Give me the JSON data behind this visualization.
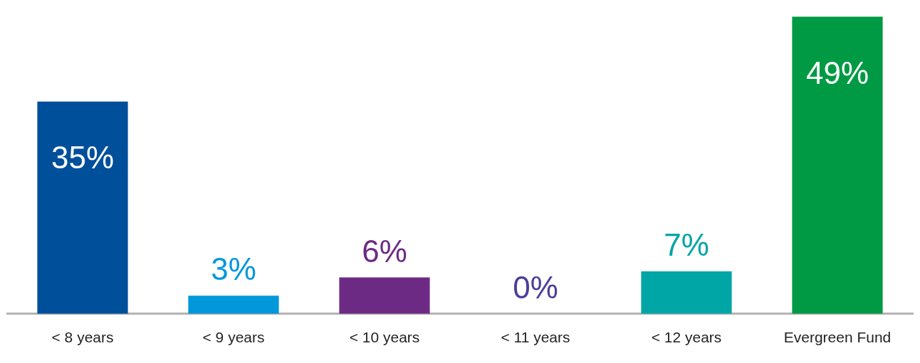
{
  "chart_data": {
    "type": "bar",
    "categories": [
      "< 8 years",
      "< 9 years",
      "< 10 years",
      "< 11 years",
      "< 12 years",
      "Evergreen Fund"
    ],
    "values": [
      35,
      3,
      6,
      0,
      7,
      49
    ],
    "colors": [
      "#004f9b",
      "#0097db",
      "#6d2a84",
      "#4b3d9b",
      "#00a5a6",
      "#009a44"
    ],
    "value_labels": [
      "35%",
      "3%",
      "6%",
      "0%",
      "7%",
      "49%"
    ],
    "grid": false,
    "legend": false
  }
}
